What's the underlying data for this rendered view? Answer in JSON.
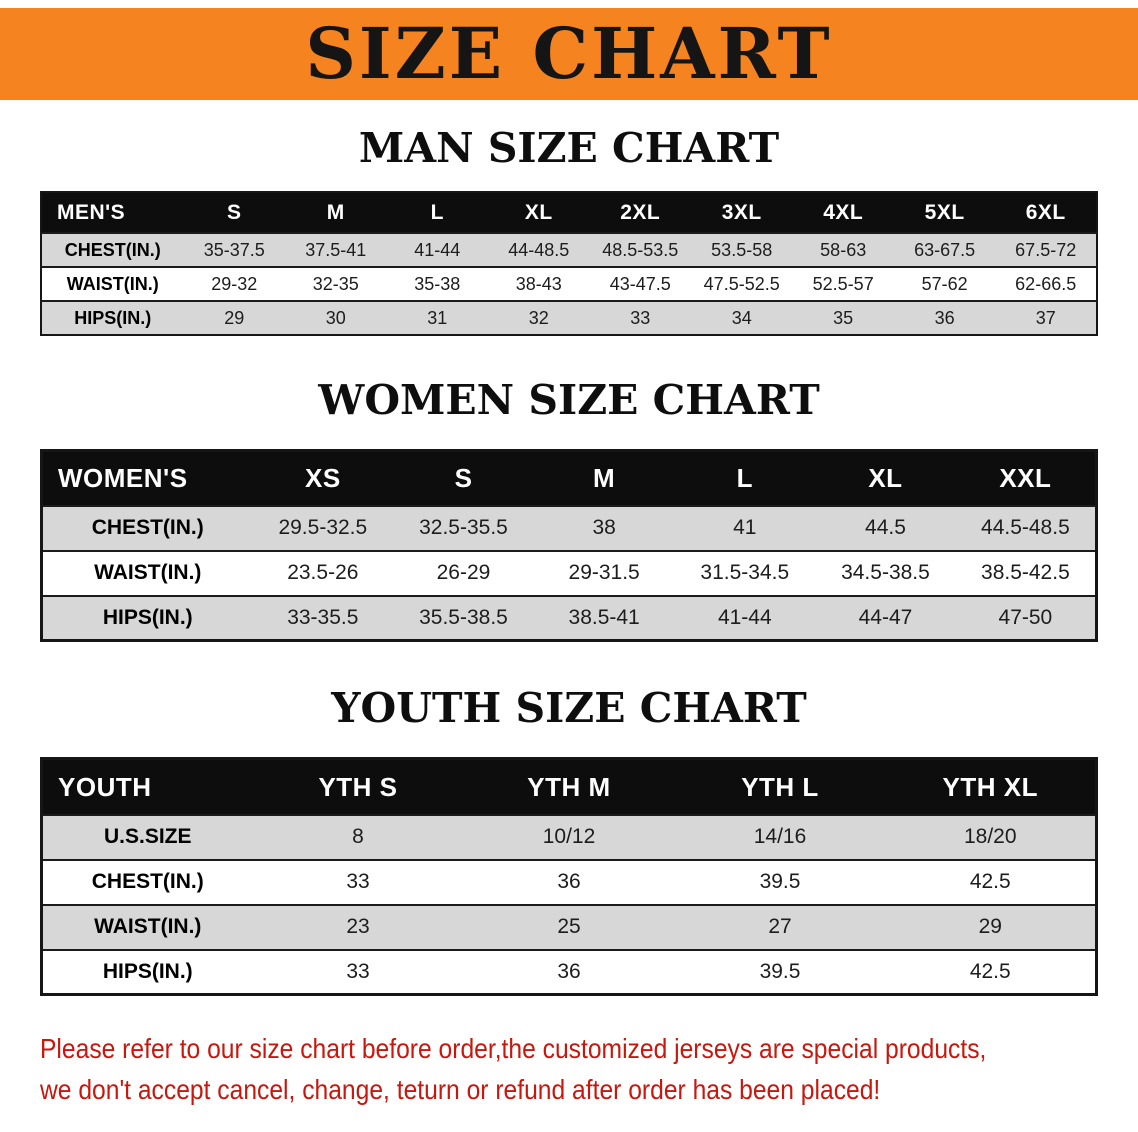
{
  "banner": {
    "title": "SIZE CHART",
    "bg_color": "#f5831f",
    "text_color": "#151515"
  },
  "sections": [
    {
      "id": "men",
      "heading": "MAN SIZE CHART",
      "table": {
        "header": [
          "MEN'S",
          "S",
          "M",
          "L",
          "XL",
          "2XL",
          "3XL",
          "4XL",
          "5XL",
          "6XL"
        ],
        "rows": [
          [
            "CHEST(IN.)",
            "35-37.5",
            "37.5-41",
            "41-44",
            "44-48.5",
            "48.5-53.5",
            "53.5-58",
            "58-63",
            "63-67.5",
            "67.5-72"
          ],
          [
            "WAIST(IN.)",
            "29-32",
            "32-35",
            "35-38",
            "38-43",
            "43-47.5",
            "47.5-52.5",
            "52.5-57",
            "57-62",
            "62-66.5"
          ],
          [
            "HIPS(IN.)",
            "29",
            "30",
            "31",
            "32",
            "33",
            "34",
            "35",
            "36",
            "37"
          ]
        ]
      }
    },
    {
      "id": "women",
      "heading": "WOMEN SIZE CHART",
      "table": {
        "header": [
          "WOMEN'S",
          "XS",
          "S",
          "M",
          "L",
          "XL",
          "XXL"
        ],
        "rows": [
          [
            "CHEST(IN.)",
            "29.5-32.5",
            "32.5-35.5",
            "38",
            "41",
            "44.5",
            "44.5-48.5"
          ],
          [
            "WAIST(IN.)",
            "23.5-26",
            "26-29",
            "29-31.5",
            "31.5-34.5",
            "34.5-38.5",
            "38.5-42.5"
          ],
          [
            "HIPS(IN.)",
            "33-35.5",
            "35.5-38.5",
            "38.5-41",
            "41-44",
            "44-47",
            "47-50"
          ]
        ]
      }
    },
    {
      "id": "youth",
      "heading": "YOUTH SIZE CHART",
      "table": {
        "header": [
          "YOUTH",
          "YTH S",
          "YTH M",
          "YTH L",
          "YTH XL"
        ],
        "rows": [
          [
            "U.S.SIZE",
            "8",
            "10/12",
            "14/16",
            "18/20"
          ],
          [
            "CHEST(IN.)",
            "33",
            "36",
            "39.5",
            "42.5"
          ],
          [
            "WAIST(IN.)",
            "23",
            "25",
            "27",
            "29"
          ],
          [
            "HIPS(IN.)",
            "33",
            "36",
            "39.5",
            "42.5"
          ]
        ]
      }
    }
  ],
  "footer": {
    "line1": "Please refer to our size chart before order,the customized jerseys are special products,",
    "line2": "we don't accept cancel, change, teturn or refund after order has been placed!",
    "text_color": "#c8170d"
  }
}
